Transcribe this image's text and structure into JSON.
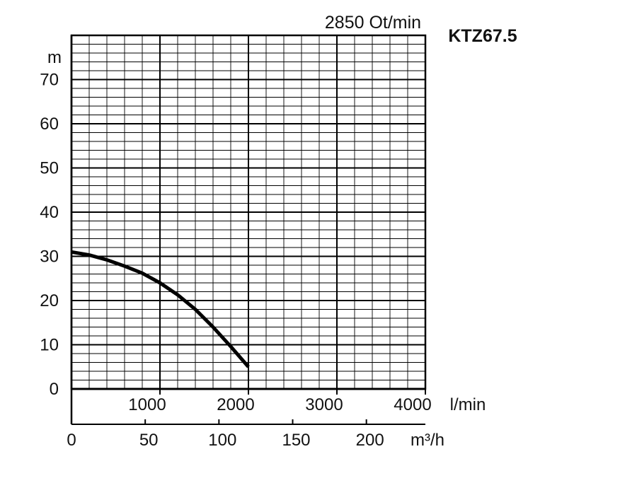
{
  "chart_data": {
    "type": "line",
    "title": "KTZ67.5",
    "subtitle": "2850 Ot/min",
    "ylabel": "m",
    "x_unit_primary": "l/min",
    "x_unit_secondary": "m³/h",
    "xlim": [
      0,
      4000
    ],
    "ylim": [
      0,
      80
    ],
    "grid": true,
    "y_ticks": [
      "0",
      "10",
      "20",
      "30",
      "40",
      "50",
      "60",
      "70"
    ],
    "x_ticks_primary": [
      "1000",
      "2000",
      "3000",
      "4000"
    ],
    "x_ticks_secondary": [
      "0",
      "50",
      "100",
      "150",
      "200"
    ],
    "series": [
      {
        "x": [
          0,
          200,
          400,
          600,
          800,
          1000,
          1200,
          1400,
          1600,
          1800,
          2000
        ],
        "y": [
          31,
          30.3,
          29.2,
          27.8,
          26.2,
          24,
          21.3,
          18,
          14,
          9.6,
          5
        ]
      }
    ]
  },
  "colors": {
    "grid": "#000000",
    "curve": "#000000",
    "text": "#111111"
  }
}
